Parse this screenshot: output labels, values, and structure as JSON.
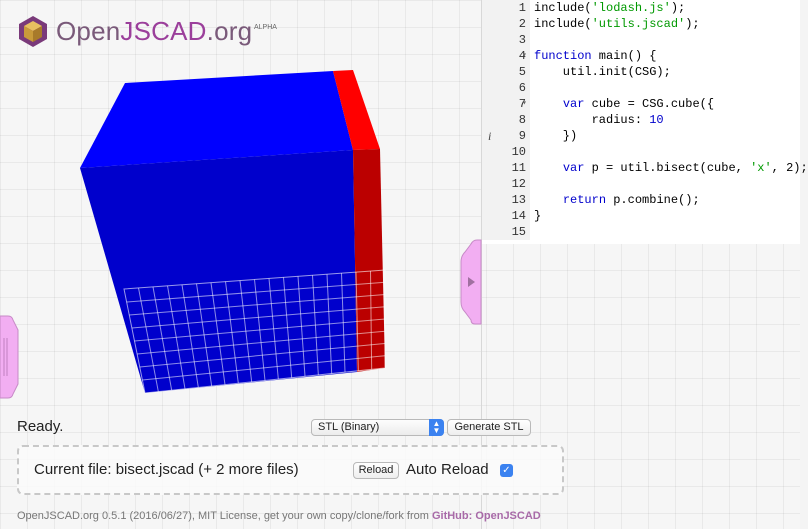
{
  "app": {
    "logo": {
      "open": "Open",
      "js": "JSCAD",
      "org": ".org",
      "badge": "ALPHA"
    }
  },
  "editor": {
    "lines": [
      {
        "n": "1",
        "fold": "",
        "info": "",
        "segs": [
          [
            "include(",
            ""
          ],
          [
            "'lodash.js'",
            "str"
          ],
          [
            ");",
            ""
          ]
        ]
      },
      {
        "n": "2",
        "fold": "",
        "info": "",
        "segs": [
          [
            "include(",
            ""
          ],
          [
            "'utils.jscad'",
            "str"
          ],
          [
            ");",
            ""
          ]
        ]
      },
      {
        "n": "3",
        "fold": "",
        "info": "",
        "segs": []
      },
      {
        "n": "4",
        "fold": "▾",
        "info": "",
        "segs": [
          [
            "function",
            "kw"
          ],
          [
            " main() {",
            ""
          ]
        ]
      },
      {
        "n": "5",
        "fold": "",
        "info": "",
        "segs": [
          [
            "    util.init(CSG);",
            ""
          ]
        ]
      },
      {
        "n": "6",
        "fold": "",
        "info": "",
        "segs": []
      },
      {
        "n": "7",
        "fold": "▾",
        "info": "",
        "segs": [
          [
            "    ",
            ""
          ],
          [
            "var",
            "kw"
          ],
          [
            " cube = CSG.cube({",
            ""
          ]
        ]
      },
      {
        "n": "8",
        "fold": "",
        "info": "",
        "segs": [
          [
            "        radius: ",
            ""
          ],
          [
            "10",
            "num"
          ]
        ]
      },
      {
        "n": "9",
        "fold": "",
        "info": "i",
        "segs": [
          [
            "    })",
            ""
          ]
        ]
      },
      {
        "n": "10",
        "fold": "",
        "info": "",
        "segs": []
      },
      {
        "n": "11",
        "fold": "",
        "info": "",
        "segs": [
          [
            "    ",
            ""
          ],
          [
            "var",
            "kw"
          ],
          [
            " p = util.bisect(cube, ",
            ""
          ],
          [
            "'x'",
            "str"
          ],
          [
            ", 2);",
            ""
          ]
        ]
      },
      {
        "n": "12",
        "fold": "",
        "info": "",
        "segs": []
      },
      {
        "n": "13",
        "fold": "",
        "info": "",
        "segs": [
          [
            "    ",
            ""
          ],
          [
            "return",
            "kw"
          ],
          [
            " p.combine();",
            ""
          ]
        ]
      },
      {
        "n": "14",
        "fold": "",
        "info": "",
        "segs": [
          [
            "}",
            ""
          ]
        ]
      },
      {
        "n": "15",
        "fold": "",
        "info": "",
        "segs": []
      }
    ]
  },
  "status": {
    "text": "Ready."
  },
  "export": {
    "format_selected": "STL (Binary)",
    "generate_label": "Generate STL"
  },
  "file_panel": {
    "current_file": "Current file: bisect.jscad (+ 2 more files)",
    "reload_label": "Reload",
    "auto_reload_label": "Auto Reload",
    "auto_reload_checked": true
  },
  "footer": {
    "text": "OpenJSCAD.org 0.5.1 (2016/06/27), MIT License, get your own copy/clone/fork from ",
    "link": "GitHub: OpenJSCAD"
  },
  "colors": {
    "cube_blue": "#0000ff",
    "cube_red": "#ff0000",
    "accent_purple": "#9b3f9b",
    "tab_pink": "#f2aef2"
  },
  "icons": [
    "openjscad-logo-icon",
    "expand-editor-icon",
    "collapse-panel-icon",
    "select-arrows-icon",
    "checkbox-checked-icon"
  ]
}
